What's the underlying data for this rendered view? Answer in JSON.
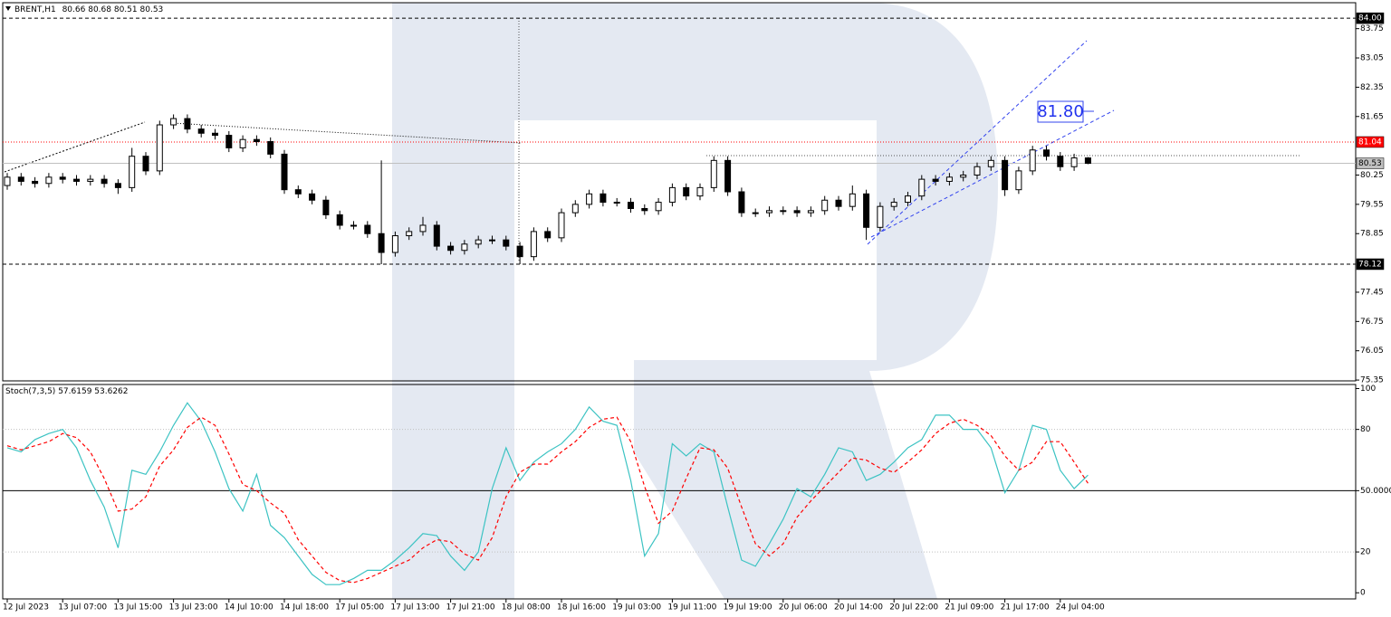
{
  "chart_data": [
    {
      "type": "candlestick",
      "title": "BRENT,H1",
      "annotation": "81.80",
      "ylim": [
        75.33,
        84.37
      ],
      "yticks": [
        83.75,
        83.05,
        82.35,
        81.65,
        80.25,
        79.55,
        78.85,
        77.45,
        76.75,
        76.05,
        75.35
      ],
      "levels": [
        {
          "value": 84,
          "label": "84.00",
          "color": "#000000",
          "style": "dashed"
        },
        {
          "value": 81.04,
          "color": "#ff0000",
          "style": "dotted"
        },
        {
          "value": 80.53,
          "color": "#c0c0c0",
          "style": "solid"
        },
        {
          "value": 78.12,
          "color": "#000000",
          "style": "dashed"
        }
      ],
      "up_color": "#ffffff",
      "down_color": "#000000",
      "open": [
        80.0,
        80.2,
        80.1,
        80.05,
        80.2,
        80.15,
        80.1,
        80.15,
        80.05,
        79.95,
        80.7,
        80.35,
        81.45,
        81.6,
        81.35,
        81.25,
        81.2,
        80.9,
        81.1,
        81.05,
        80.75,
        79.9,
        79.8,
        79.65,
        79.3,
        79.05,
        79.05,
        78.85,
        78.4,
        78.8,
        78.9,
        79.05,
        78.55,
        78.45,
        78.6,
        78.7,
        78.7,
        78.55,
        78.3,
        78.9,
        78.75,
        79.35,
        79.55,
        79.8,
        79.6,
        79.6,
        79.45,
        79.4,
        79.6,
        79.95,
        79.75,
        79.95,
        80.6,
        79.85,
        79.35,
        79.35,
        79.4,
        79.4,
        79.35,
        79.4,
        79.65,
        79.5,
        79.8,
        79.0,
        79.5,
        79.6,
        79.75,
        80.15,
        80.1,
        80.2,
        80.25,
        80.45,
        80.6,
        79.9,
        80.35,
        80.85,
        80.7,
        80.45,
        80.66
      ],
      "high": [
        80.3,
        80.3,
        80.2,
        80.3,
        80.3,
        80.25,
        80.25,
        80.25,
        80.15,
        80.9,
        80.8,
        81.55,
        81.7,
        81.7,
        81.45,
        81.35,
        81.3,
        81.2,
        81.2,
        81.15,
        80.85,
        80.0,
        79.9,
        79.75,
        79.4,
        79.15,
        79.15,
        80.6,
        78.9,
        79.0,
        79.25,
        79.15,
        78.65,
        78.7,
        78.8,
        78.8,
        78.8,
        78.65,
        79.0,
        79.0,
        79.45,
        79.65,
        79.9,
        79.9,
        79.7,
        79.7,
        79.55,
        79.7,
        80.05,
        80.05,
        80.05,
        80.7,
        80.7,
        79.95,
        79.45,
        79.5,
        79.5,
        79.5,
        79.5,
        79.75,
        79.75,
        80.0,
        79.9,
        79.6,
        79.7,
        79.85,
        80.25,
        80.25,
        80.3,
        80.35,
        80.55,
        80.7,
        80.7,
        80.45,
        80.95,
        80.95,
        80.8,
        80.76,
        80.68
      ],
      "low": [
        79.9,
        80.0,
        79.95,
        79.95,
        80.05,
        80.0,
        80.0,
        79.95,
        79.8,
        79.85,
        80.25,
        80.25,
        81.35,
        81.25,
        81.15,
        81.1,
        80.8,
        80.8,
        80.95,
        80.65,
        79.8,
        79.7,
        79.55,
        79.2,
        78.95,
        78.95,
        78.75,
        78.12,
        78.3,
        78.7,
        78.8,
        78.45,
        78.35,
        78.35,
        78.5,
        78.6,
        78.45,
        78.12,
        78.2,
        78.65,
        78.65,
        79.25,
        79.45,
        79.5,
        79.5,
        79.35,
        79.3,
        79.3,
        79.5,
        79.65,
        79.65,
        79.85,
        79.75,
        79.25,
        79.25,
        79.25,
        79.3,
        79.25,
        79.25,
        79.3,
        79.4,
        79.4,
        78.7,
        78.9,
        79.4,
        79.5,
        79.65,
        80.0,
        80.0,
        80.1,
        80.15,
        80.35,
        79.75,
        79.8,
        80.25,
        80.6,
        80.35,
        80.35,
        80.51
      ],
      "close": [
        80.2,
        80.1,
        80.05,
        80.2,
        80.15,
        80.1,
        80.15,
        80.05,
        79.95,
        80.7,
        80.35,
        81.45,
        81.6,
        81.35,
        81.25,
        81.2,
        80.9,
        81.1,
        81.05,
        80.75,
        79.9,
        79.8,
        79.65,
        79.3,
        79.05,
        79.05,
        78.85,
        78.4,
        78.8,
        78.9,
        79.05,
        78.55,
        78.45,
        78.6,
        78.7,
        78.7,
        78.55,
        78.3,
        78.9,
        78.75,
        79.35,
        79.55,
        79.8,
        79.6,
        79.6,
        79.45,
        79.4,
        79.6,
        79.95,
        79.75,
        79.95,
        80.6,
        79.85,
        79.35,
        79.35,
        79.4,
        79.4,
        79.35,
        79.4,
        79.65,
        79.5,
        79.8,
        79.0,
        79.5,
        79.6,
        79.75,
        80.15,
        80.1,
        80.2,
        80.25,
        80.45,
        80.6,
        79.9,
        80.35,
        80.85,
        80.7,
        80.45,
        80.66,
        80.53
      ]
    },
    {
      "type": "line",
      "title": "Stoch(7,3,5)",
      "categories": [
        "12 Jul 2023",
        null,
        null,
        null,
        "13 Jul 07:00",
        null,
        null,
        null,
        "13 Jul 15:00",
        null,
        null,
        null,
        "13 Jul 23:00",
        null,
        null,
        null,
        "14 Jul 10:00",
        null,
        null,
        null,
        "14 Jul 18:00",
        null,
        null,
        null,
        "17 Jul 05:00",
        null,
        null,
        null,
        "17 Jul 13:00",
        null,
        null,
        null,
        "17 Jul 21:00",
        null,
        null,
        null,
        "18 Jul 08:00",
        null,
        null,
        null,
        "18 Jul 16:00",
        null,
        null,
        null,
        "19 Jul 03:00",
        null,
        null,
        null,
        "19 Jul 11:00",
        null,
        null,
        null,
        "19 Jul 19:00",
        null,
        null,
        null,
        "20 Jul 06:00",
        null,
        null,
        null,
        "20 Jul 14:00",
        null,
        null,
        null,
        "20 Jul 22:00",
        null,
        null,
        null,
        "21 Jul 09:00",
        null,
        null,
        null,
        "21 Jul 17:00",
        null,
        null,
        null,
        "24 Jul 04:00",
        null,
        null
      ],
      "ylim": [
        -3,
        102
      ],
      "yticks": [
        100,
        80,
        {
          "value": 50,
          "label": "50.0000"
        },
        20,
        0
      ],
      "levels": [
        {
          "value": 80,
          "style": "dotted",
          "color": "#c0c0c0"
        },
        {
          "value": 50,
          "style": "solid",
          "color": "#000000"
        },
        {
          "value": 20,
          "style": "dotted",
          "color": "#c0c0c0"
        }
      ],
      "series": [
        {
          "color": "#3cc3c3",
          "style": "solid",
          "values": [
            71,
            69,
            75,
            78,
            80,
            71,
            55,
            42,
            22,
            60,
            58,
            69,
            82,
            93,
            84,
            69,
            51,
            40,
            58,
            33,
            27,
            18,
            9,
            4,
            4,
            7,
            11,
            11,
            16,
            22,
            29,
            28,
            18,
            11,
            20,
            51,
            71,
            55,
            64,
            69,
            73,
            80,
            91,
            84,
            82,
            55,
            18,
            29,
            73,
            67,
            73,
            69,
            42,
            16,
            13,
            24,
            36,
            51,
            47,
            58,
            71,
            69,
            55,
            58,
            64,
            71,
            75,
            87,
            87,
            80,
            80,
            71,
            49,
            60,
            82,
            80,
            60,
            51,
            57.6159
          ]
        },
        {
          "color": "#ff0000",
          "style": "dashed",
          "values": [
            72,
            70,
            72,
            74,
            78,
            76,
            69,
            56,
            40,
            41,
            47,
            62,
            70,
            81,
            86,
            82,
            68,
            53,
            50,
            44,
            39,
            26,
            18,
            10,
            6,
            5,
            7,
            10,
            13,
            16,
            22,
            26,
            25,
            19,
            16,
            27,
            47,
            59,
            63,
            63,
            69,
            74,
            81,
            85,
            86,
            74,
            52,
            34,
            40,
            56,
            71,
            70,
            61,
            42,
            24,
            18,
            24,
            37,
            45,
            52,
            59,
            66,
            65,
            61,
            59,
            64,
            70,
            78,
            83,
            85,
            82,
            77,
            67,
            60,
            64,
            74,
            74,
            64,
            53.6262
          ]
        }
      ]
    }
  ]
}
